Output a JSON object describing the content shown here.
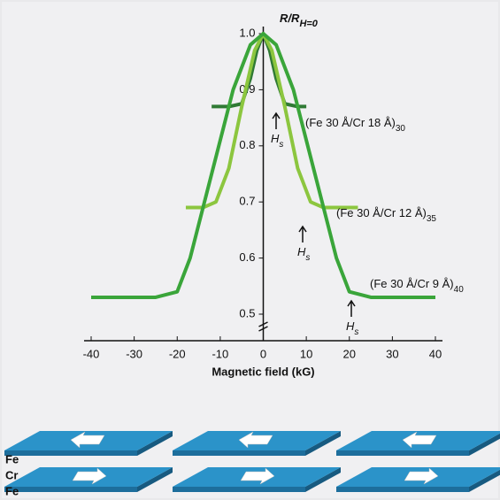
{
  "chart_data": {
    "type": "line",
    "title": {
      "text": "R/R",
      "subscript": "H=0"
    },
    "x_label": "Magnetic field (kG)",
    "xlim": [
      -40,
      40
    ],
    "xticks": [
      -40,
      -30,
      -20,
      -10,
      0,
      10,
      20,
      30,
      40
    ],
    "ylim": [
      0.5,
      1.0
    ],
    "yticks": [
      0.5,
      0.6,
      0.7,
      0.8,
      0.9,
      {
        "value": 1,
        "label": "1.0"
      }
    ],
    "series": [
      {
        "name": "(Fe 30 Å/Cr 18 Å)",
        "subscript": "30",
        "color": "#2f7a34",
        "x": [
          -12,
          -8,
          -5,
          -3,
          -1.5,
          0,
          1.5,
          3,
          5,
          8,
          10
        ],
        "values": [
          0.87,
          0.87,
          0.875,
          0.92,
          0.97,
          1.0,
          0.97,
          0.92,
          0.875,
          0.87,
          0.87
        ]
      },
      {
        "name": "(Fe 30 Å/Cr 12 Å)",
        "subscript": "35",
        "color": "#8cc63f",
        "x": [
          -18,
          -14,
          -11,
          -8,
          -5,
          -2,
          0,
          2,
          5,
          8,
          11,
          14,
          18,
          22
        ],
        "values": [
          0.69,
          0.69,
          0.7,
          0.76,
          0.87,
          0.97,
          1.0,
          0.97,
          0.87,
          0.76,
          0.7,
          0.69,
          0.69,
          0.69
        ]
      },
      {
        "name": "(Fe 30 Å/Cr 9 Å)",
        "subscript": "40",
        "color": "#3aa53a",
        "x": [
          -40,
          -25,
          -20,
          -17,
          -12,
          -7,
          -3,
          0,
          3,
          7,
          12,
          17,
          20,
          25,
          40
        ],
        "values": [
          0.53,
          0.53,
          0.54,
          0.6,
          0.75,
          0.9,
          0.98,
          1.0,
          0.98,
          0.9,
          0.75,
          0.6,
          0.54,
          0.53,
          0.53
        ]
      }
    ],
    "annotations": [
      {
        "text": "H",
        "subscript": "s"
      },
      {
        "text": "H",
        "subscript": "s"
      },
      {
        "text": "H",
        "subscript": "s"
      }
    ],
    "layers": [
      "Fe",
      "Cr",
      "Fe"
    ]
  }
}
